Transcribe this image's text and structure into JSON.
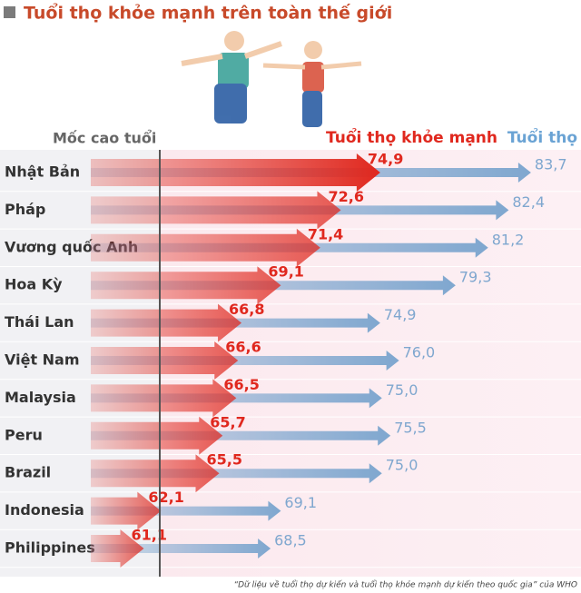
{
  "chart_data": {
    "type": "arrow-bar",
    "title": "Tuổi thọ khỏe mạnh trên toàn thế giới",
    "reference_label": "Mốc cao tuổi",
    "categories": [
      "Nhật Bản",
      "Pháp",
      "Vương quốc Anh",
      "Hoa Kỳ",
      "Thái Lan",
      "Việt Nam",
      "Malaysia",
      "Peru",
      "Brazil",
      "Indonesia",
      "Philippines"
    ],
    "series": [
      {
        "name": "Tuổi thọ",
        "color": "#7fa7cf",
        "values": [
          83.7,
          82.4,
          81.2,
          79.3,
          74.9,
          76.0,
          75.0,
          75.5,
          75.0,
          69.1,
          68.5
        ],
        "value_labels": [
          "83,7",
          "82,4",
          "81,2",
          "79,3",
          "74,9",
          "76,0",
          "75,0",
          "75,5",
          "75,0",
          "69,1",
          "68,5"
        ]
      },
      {
        "name": "Tuổi thọ khỏe mạnh",
        "color": "#e0281e",
        "values": [
          74.9,
          72.6,
          71.4,
          69.1,
          66.8,
          66.6,
          66.5,
          65.7,
          65.5,
          62.1,
          61.1
        ],
        "value_labels": [
          "74,9",
          "72,6",
          "71,4",
          "69,1",
          "66,8",
          "66,6",
          "66,5",
          "65,7",
          "65,5",
          "62,1",
          "61,1"
        ]
      }
    ],
    "xlim": [
      58,
      84.5
    ],
    "source": "“Dữ liệu về tuổi thọ dự kiến và tuổi thọ khỏe mạnh dự kiến theo quốc gia” của WHO"
  }
}
